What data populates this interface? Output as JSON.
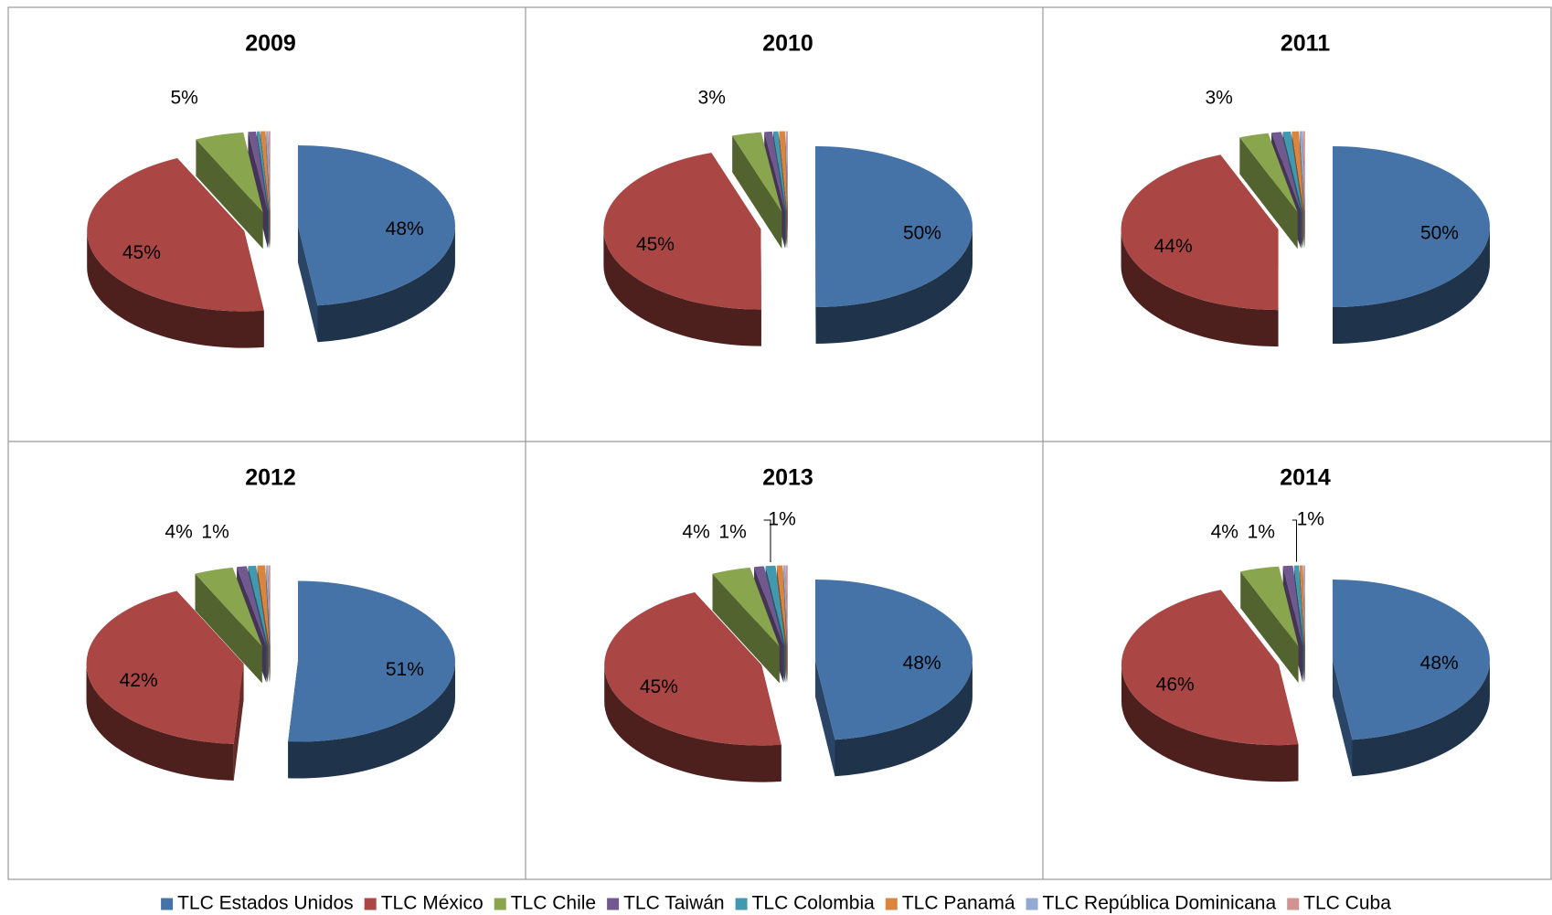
{
  "legend": {
    "labels": [
      "TLC Estados Unidos",
      "TLC México",
      "TLC Chile",
      "TLC Taiwán",
      "TLC Colombia",
      "TLC Panamá",
      "TLC República Dominicana",
      "TLC Cuba"
    ],
    "colors": [
      "#4572a7",
      "#aa4643",
      "#89a54e",
      "#71588f",
      "#4198af",
      "#db843d",
      "#93a9cf",
      "#d19392"
    ]
  },
  "chart_data": [
    {
      "type": "pie",
      "title": "2009",
      "values": [
        48,
        45,
        5,
        0.8,
        0.3,
        0.5,
        0.2,
        0.2
      ],
      "value_labels": [
        "48%",
        "45%",
        "5%",
        null,
        null,
        null,
        null,
        null
      ]
    },
    {
      "type": "pie",
      "title": "2010",
      "values": [
        50,
        45,
        3,
        0.8,
        0.5,
        0.6,
        0.1,
        0.1
      ],
      "value_labels": [
        "50%",
        "45%",
        "3%",
        null,
        null,
        null,
        null,
        null
      ]
    },
    {
      "type": "pie",
      "title": "2011",
      "values": [
        50,
        44,
        3,
        1,
        0.8,
        0.7,
        0.3,
        0.2
      ],
      "value_labels": [
        "50%",
        "44%",
        "3%",
        null,
        null,
        null,
        null,
        null
      ]
    },
    {
      "type": "pie",
      "title": "2012",
      "values": [
        51,
        42,
        4,
        1,
        0.8,
        0.8,
        0.2,
        0.2
      ],
      "value_labels": [
        "51%",
        "42%",
        "4%",
        "1%",
        null,
        null,
        null,
        null
      ]
    },
    {
      "type": "pie",
      "title": "2013",
      "values": [
        48,
        45,
        4,
        1,
        1,
        0.6,
        0.2,
        0.2
      ],
      "value_labels": [
        "48%",
        "45%",
        "4%",
        "1%",
        "1%",
        null,
        null,
        null
      ]
    },
    {
      "type": "pie",
      "title": "2014",
      "values": [
        48,
        46,
        4,
        1,
        0.5,
        0.3,
        0.1,
        0.1
      ],
      "value_labels": [
        "48%",
        "46%",
        "4%",
        "1%",
        "1%",
        null,
        null,
        null
      ]
    }
  ]
}
